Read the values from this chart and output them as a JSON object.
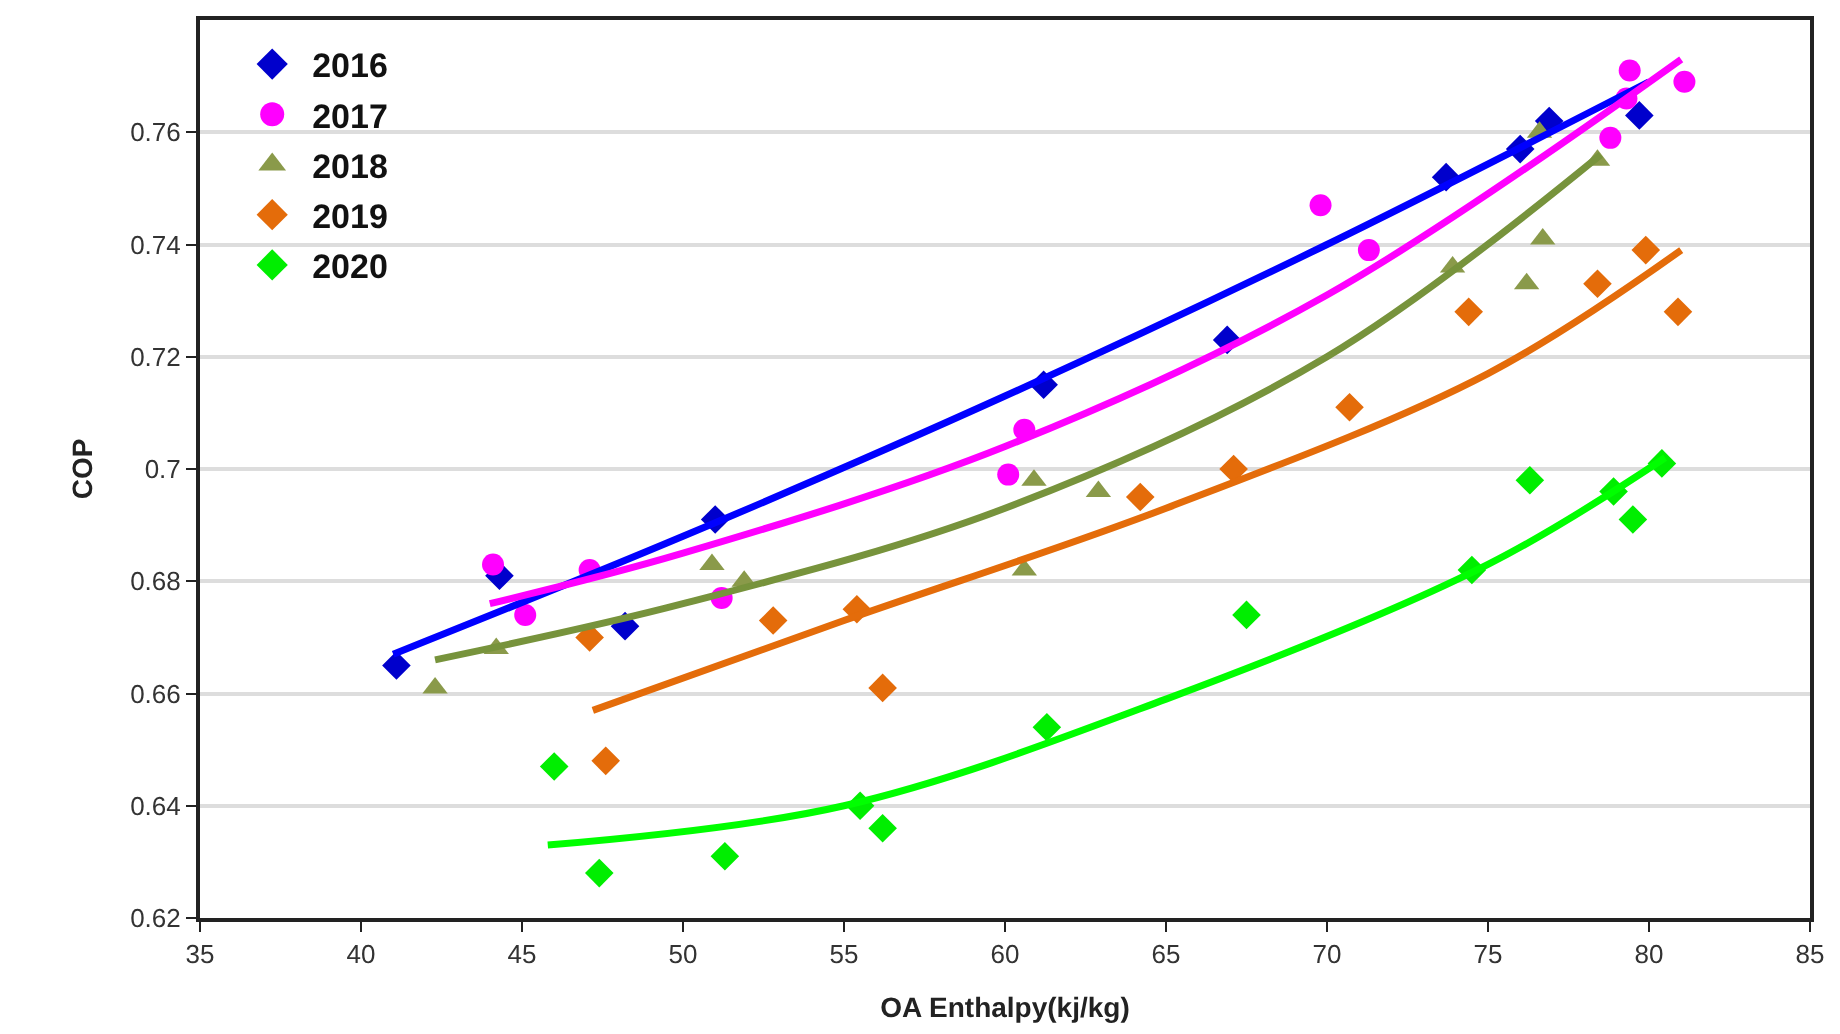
{
  "chart_data": {
    "type": "scatter",
    "xlabel": "OA Enthalpy(kj/kg)",
    "ylabel": "COP",
    "xlim": [
      35,
      85
    ],
    "xticks": [
      35,
      40,
      45,
      50,
      55,
      60,
      65,
      70,
      75,
      80,
      85
    ],
    "ylim": [
      0.62,
      0.78
    ],
    "yticks": [
      0.62,
      0.64,
      0.66,
      0.68,
      0.7,
      0.72,
      0.74,
      0.76
    ],
    "grid": "y",
    "legend": "top left",
    "series": [
      {
        "name": "2016",
        "color": "#0000cc",
        "marker": "diamond",
        "x": [
          41.1,
          44.3,
          48.2,
          51.0,
          61.2,
          66.9,
          73.7,
          76.0,
          76.9,
          79.7
        ],
        "values": [
          0.665,
          0.681,
          0.672,
          0.691,
          0.715,
          0.723,
          0.752,
          0.757,
          0.762,
          0.763
        ]
      },
      {
        "name": "2017",
        "color": "#ff00ff",
        "marker": "circle",
        "x": [
          44.1,
          45.1,
          47.1,
          51.2,
          60.1,
          60.6,
          69.8,
          71.3,
          78.8,
          79.3,
          79.4,
          81.1
        ],
        "values": [
          0.683,
          0.674,
          0.682,
          0.677,
          0.699,
          0.707,
          0.747,
          0.739,
          0.759,
          0.766,
          0.771,
          0.769
        ]
      },
      {
        "name": "2018",
        "color": "#8a9a4a",
        "marker": "triangle",
        "x": [
          42.3,
          44.2,
          50.9,
          51.9,
          60.6,
          60.9,
          62.9,
          73.9,
          76.2,
          76.6,
          76.7,
          78.4
        ],
        "values": [
          0.661,
          0.668,
          0.683,
          0.68,
          0.682,
          0.698,
          0.696,
          0.736,
          0.733,
          0.76,
          0.741,
          0.755
        ]
      },
      {
        "name": "2019",
        "color": "#e46c0a",
        "marker": "diamond",
        "x": [
          47.1,
          47.6,
          52.8,
          55.4,
          56.2,
          64.2,
          67.1,
          70.7,
          74.4,
          78.4,
          79.9,
          80.9
        ],
        "values": [
          0.67,
          0.648,
          0.673,
          0.675,
          0.661,
          0.695,
          0.7,
          0.711,
          0.728,
          0.733,
          0.739,
          0.728
        ]
      },
      {
        "name": "2020",
        "color": "#00ee00",
        "marker": "diamond",
        "x": [
          46.0,
          47.4,
          51.3,
          55.5,
          56.2,
          61.3,
          67.5,
          74.5,
          76.3,
          78.9,
          79.5,
          80.4
        ],
        "values": [
          0.647,
          0.628,
          0.631,
          0.64,
          0.636,
          0.654,
          0.674,
          0.682,
          0.698,
          0.696,
          0.691,
          0.701
        ]
      },
      {
        "type": "line",
        "color": "#0000ff",
        "marker": "none",
        "x": [
          41,
          50,
          60,
          70,
          80
        ],
        "values": [
          0.667,
          0.688,
          0.713,
          0.74,
          0.769
        ]
      },
      {
        "type": "line",
        "color": "#ff00ff",
        "marker": "none",
        "x": [
          44,
          50,
          60,
          70,
          81
        ],
        "values": [
          0.676,
          0.685,
          0.704,
          0.731,
          0.773
        ]
      },
      {
        "type": "line",
        "color": "#77933c",
        "marker": "none",
        "x": [
          42.3,
          50,
          60,
          70,
          78.5
        ],
        "values": [
          0.666,
          0.676,
          0.693,
          0.72,
          0.756
        ]
      },
      {
        "type": "line",
        "color": "#e46c0a",
        "marker": "none",
        "x": [
          47.2,
          55,
          65,
          75,
          81
        ],
        "values": [
          0.657,
          0.673,
          0.693,
          0.717,
          0.739
        ]
      },
      {
        "type": "line",
        "color": "#00ff00",
        "marker": "none",
        "x": [
          45.8,
          55,
          65,
          75,
          80.5
        ],
        "values": [
          0.633,
          0.64,
          0.659,
          0.683,
          0.702
        ]
      }
    ]
  }
}
